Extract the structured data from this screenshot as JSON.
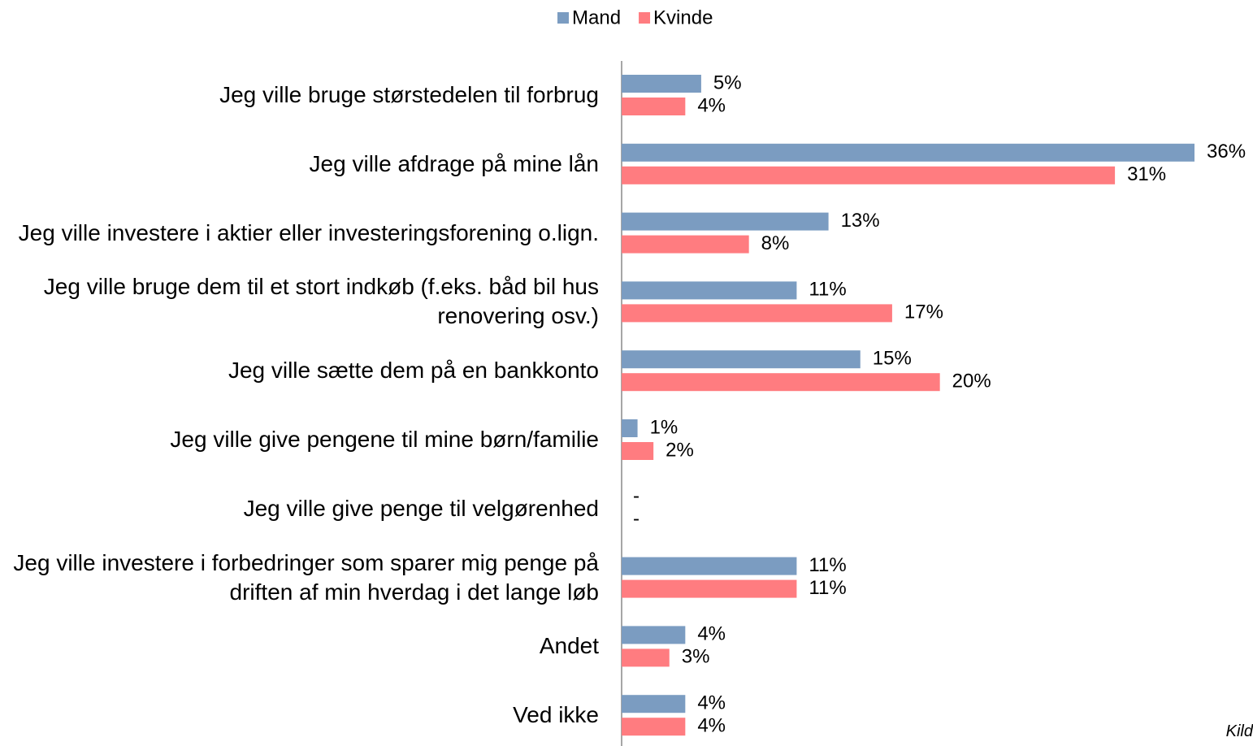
{
  "chart_data": {
    "type": "bar",
    "orientation": "horizontal",
    "categories": [
      "Jeg ville bruge størstedelen til forbrug",
      "Jeg ville afdrage på mine lån",
      "Jeg ville investere i aktier eller investeringsforening o.lign.",
      "Jeg ville bruge dem til et stort indkøb (f.eks. båd bil hus renovering osv.)",
      "Jeg ville sætte dem på en bankkonto",
      "Jeg ville give pengene til mine børn/familie",
      "Jeg ville give penge til velgørenhed",
      "Jeg ville investere i forbedringer som sparer mig penge på driften af min hverdag i det lange løb",
      "Andet",
      "Ved ikke"
    ],
    "series": [
      {
        "name": "Mand",
        "color": "#7b9cc1",
        "values": [
          5,
          36,
          13,
          11,
          15,
          1,
          0,
          11,
          4,
          4
        ],
        "value_labels": [
          "5%",
          "36%",
          "13%",
          "11%",
          "15%",
          "1%",
          "-",
          "11%",
          "4%",
          "4%"
        ]
      },
      {
        "name": "Kvinde",
        "color": "#ff7c80",
        "values": [
          4,
          31,
          8,
          17,
          20,
          2,
          0,
          11,
          3,
          4
        ],
        "value_labels": [
          "4%",
          "31%",
          "8%",
          "17%",
          "20%",
          "2%",
          "-",
          "11%",
          "3%",
          "4%"
        ]
      }
    ],
    "xlim": [
      0,
      36
    ],
    "legend": "top",
    "source": "Kild"
  }
}
